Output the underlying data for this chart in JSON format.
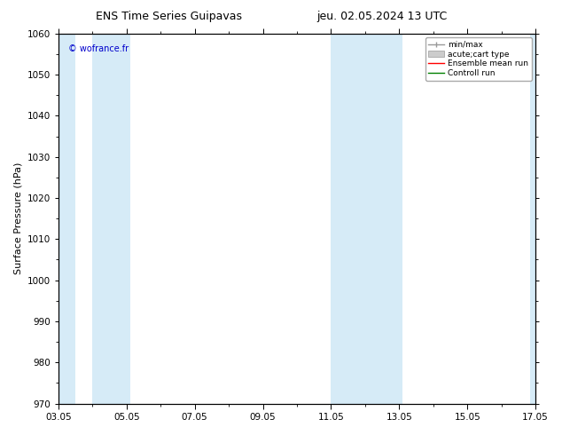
{
  "title_left": "ENS Time Series Guipavas",
  "title_right": "jeu. 02.05.2024 13 UTC",
  "ylabel": "Surface Pressure (hPa)",
  "ylim": [
    970,
    1060
  ],
  "yticks": [
    970,
    980,
    990,
    1000,
    1010,
    1020,
    1030,
    1040,
    1050,
    1060
  ],
  "xtick_labels": [
    "03.05",
    "05.05",
    "07.05",
    "09.05",
    "11.05",
    "13.05",
    "15.05",
    "17.05"
  ],
  "xtick_positions": [
    0,
    2,
    4,
    6,
    8,
    10,
    12,
    14
  ],
  "xlim": [
    0,
    14
  ],
  "shaded_bands": [
    {
      "xstart": -0.1,
      "xend": 0.5,
      "color": "#d6ebf7"
    },
    {
      "xstart": 1.0,
      "xend": 2.1,
      "color": "#d6ebf7"
    },
    {
      "xstart": 8.0,
      "xend": 10.1,
      "color": "#d6ebf7"
    },
    {
      "xstart": 13.85,
      "xend": 14.1,
      "color": "#d6ebf7"
    }
  ],
  "copyright_text": "© wofrance.fr",
  "copyright_color": "#0000cc",
  "legend_items": [
    {
      "label": "min/max",
      "type": "hline_bar",
      "color": "#999999"
    },
    {
      "label": "acute;cart type",
      "type": "fill",
      "color": "#cccccc"
    },
    {
      "label": "Ensemble mean run",
      "type": "line",
      "color": "#ff0000"
    },
    {
      "label": "Controll run",
      "type": "line",
      "color": "#008000"
    }
  ],
  "background_color": "#ffffff",
  "plot_bg_color": "#ffffff",
  "title_fontsize": 9,
  "axis_label_fontsize": 8,
  "tick_fontsize": 7.5,
  "legend_fontsize": 6.5
}
